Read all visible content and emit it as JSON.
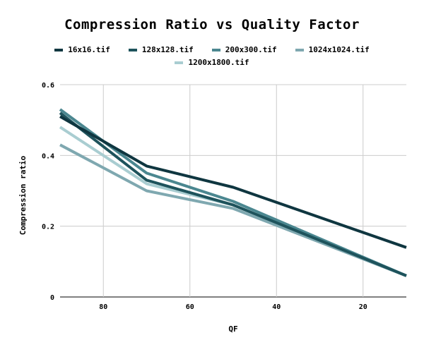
{
  "chart_data": {
    "type": "line",
    "title": "Compression Ratio vs Quality Factor",
    "xlabel": "QF",
    "ylabel": "Compression ratio",
    "x": [
      90,
      70,
      50,
      10
    ],
    "xlim": [
      90,
      10
    ],
    "ylim": [
      0,
      0.6
    ],
    "x_ticks": [
      80,
      60,
      40,
      20
    ],
    "y_ticks": [
      0,
      0.2,
      0.4,
      0.6
    ],
    "x_tick_labels": [
      "80",
      "60",
      "40",
      "20"
    ],
    "y_tick_labels": [
      "0",
      "0.2",
      "0.4",
      "0.6"
    ],
    "grid": true,
    "legend_position": "top",
    "series": [
      {
        "name": "16x16.tif",
        "color": "#0f3640",
        "values": [
          0.51,
          0.37,
          0.31,
          0.14
        ]
      },
      {
        "name": "128x128.tif",
        "color": "#1e535c",
        "values": [
          0.52,
          0.33,
          0.26,
          0.06
        ]
      },
      {
        "name": "200x300.tif",
        "color": "#4b8790",
        "values": [
          0.53,
          0.35,
          0.27,
          0.06
        ]
      },
      {
        "name": "1024x1024.tif",
        "color": "#7fa8b0",
        "values": [
          0.43,
          0.3,
          0.25,
          0.06
        ]
      },
      {
        "name": "1200x1800.tif",
        "color": "#a9cdd1",
        "values": [
          0.48,
          0.32,
          0.26,
          0.06
        ]
      }
    ]
  }
}
